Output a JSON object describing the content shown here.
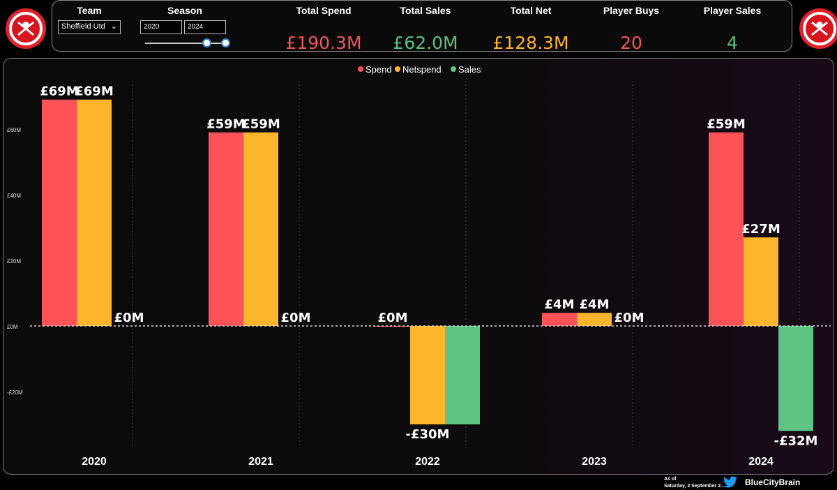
{
  "header": {
    "team_label": "Team",
    "team_value": "Sheffield Utd",
    "season_label": "Season",
    "season_from": "2020",
    "season_to": "2024",
    "kpis": [
      {
        "label": "Total Spend",
        "value": "£190.3M",
        "color": "#f4545a"
      },
      {
        "label": "Total Sales",
        "value": "£62.0M",
        "color": "#5cc17f"
      },
      {
        "label": "Total Net",
        "value": "£128.3M",
        "color": "#fdb52d"
      },
      {
        "label": "Player Buys",
        "value": "20",
        "color": "#f4545a"
      },
      {
        "label": "Player Sales",
        "value": "4",
        "color": "#5cc17f"
      }
    ]
  },
  "colors": {
    "spend": "#fd5257",
    "netspend": "#fdb52d",
    "sales": "#5fc383",
    "accent": "#3a86d8"
  },
  "chart_data": {
    "type": "bar",
    "categories": [
      "2020",
      "2021",
      "2022",
      "2023",
      "2024"
    ],
    "series": [
      {
        "name": "Spend",
        "values": [
          69,
          59,
          0,
          4,
          59
        ],
        "labels": [
          "£69M",
          "£59M",
          "£0M",
          "£4M",
          "£59M"
        ]
      },
      {
        "name": "Netspend",
        "values": [
          69,
          59,
          -30,
          4,
          27
        ],
        "labels": [
          "£69M",
          "£59M",
          "-£30M",
          "£4M",
          "£27M"
        ]
      },
      {
        "name": "Sales",
        "values": [
          0,
          0,
          -30,
          0,
          -32
        ],
        "labels": [
          "£0M",
          "£0M",
          "",
          "£0M",
          "-£32M"
        ]
      }
    ],
    "yticks": [
      60,
      40,
      20,
      0,
      -20
    ],
    "ytick_labels": [
      "£60M",
      "£40M",
      "£20M",
      "£0M",
      "-£20M"
    ],
    "ylim": [
      -40,
      75
    ],
    "legend_position": "top-center",
    "unit": "£M"
  },
  "footer": {
    "as_of_label": "As of",
    "as_of_date": "Saturday, 2 September 2...",
    "handle": "BlueCityBrain",
    "icon": "twitter-bird-icon"
  },
  "logos": {
    "left": "club-crest-icon",
    "right": "club-crest-icon"
  }
}
